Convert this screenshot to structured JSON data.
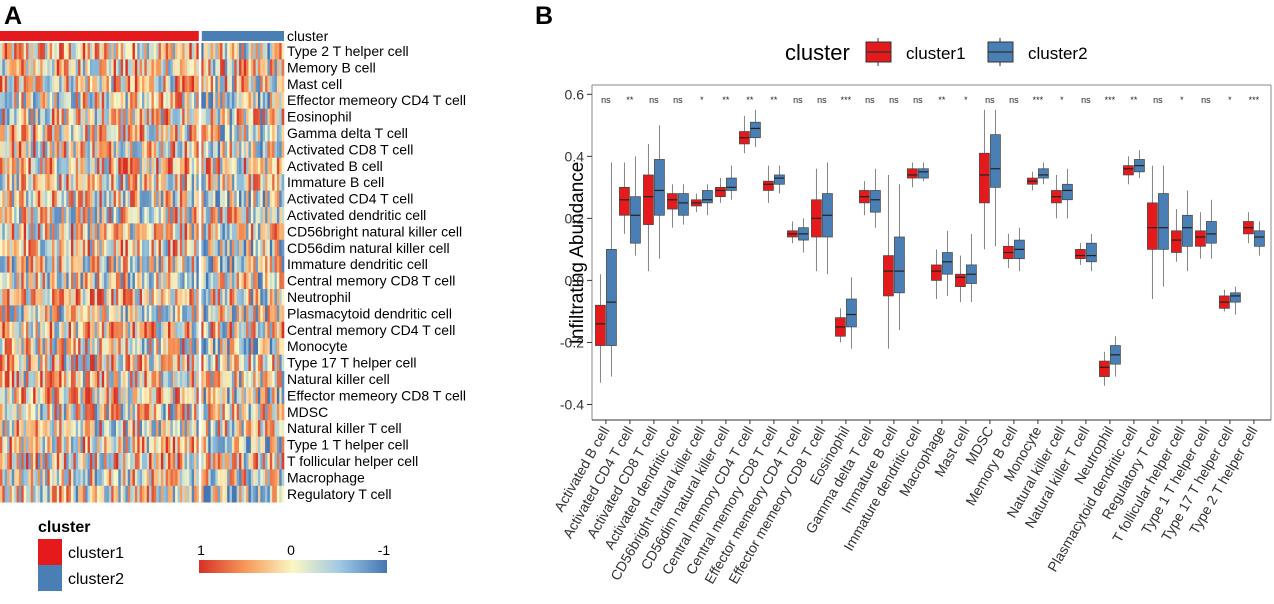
{
  "panel_a": {
    "label": "A",
    "cluster_label": "cluster",
    "rows": [
      "Type 2 T helper cell",
      "Memory B cell",
      "Mast cell",
      "Effector memeory CD4 T cell",
      "Eosinophil",
      "Gamma delta T cell",
      "Activated CD8 T cell",
      "Activated B cell",
      "Immature  B cell",
      "Activated CD4 T cell",
      "Activated dendritic cell",
      "CD56bright natural killer cell",
      "CD56dim natural killer cell",
      "Immature dendritic cell",
      "Central memory CD8 T cell",
      "Neutrophil",
      "Plasmacytoid dendritic cell",
      "Central memory CD4 T cell",
      "Monocyte",
      "Type 17 T helper cell",
      "Natural killer cell",
      "Effector memeory CD8 T cell",
      "MDSC",
      "Natural killer T cell",
      "Type 1 T helper cell",
      "T follicular helper cell",
      "Macrophage",
      "Regulatory T cell"
    ],
    "legend_title": "cluster",
    "legend_items": [
      "cluster1",
      "cluster2"
    ],
    "scale_labels": [
      "1",
      "0",
      "-1"
    ]
  },
  "colors": {
    "cluster1": "#e41a1c",
    "cluster2": "#4a7fb5",
    "heat_high": "#d73027",
    "heat_mid": "#fbf7c4",
    "heat_low": "#4575b4"
  },
  "chart_data": {
    "type": "box",
    "panel_label": "B",
    "legend_title": "cluster",
    "series_names": [
      "cluster1",
      "cluster2"
    ],
    "ylabel": "Infiltrating Abundance",
    "ylim": [
      -0.45,
      0.63
    ],
    "yticks": [
      "0.6",
      "0.4",
      "0.2",
      "0.0",
      "-0.2",
      "-0.4"
    ],
    "categories": [
      "Activated B cell",
      "Activated CD4 T cell",
      "Activated CD8 T cell",
      "Activated dendritic cell",
      "CD56bright natural killer cell",
      "CD56dim natural killer cell",
      "Central memory CD4 T cell",
      "Central memory CD8 T cell",
      "Effector memeory CD4 T cell",
      "Effector memeory CD8 T cell",
      "Eosinophil",
      "Gamma delta T cell",
      "Immature  B cell",
      "Immature dendritic cell",
      "Macrophage",
      "Mast cell",
      "MDSC",
      "Memory B cell",
      "Monocyte",
      "Natural killer cell",
      "Natural killer T cell",
      "Neutrophil",
      "Plasmacytoid dendritic cell",
      "Regulatory T cell",
      "T follicular helper cell",
      "Type 1 T helper cell",
      "Type 17 T helper cell",
      "Type 2 T helper cell"
    ],
    "significance": [
      "ns",
      "**",
      "ns",
      "ns",
      "*",
      "**",
      "**",
      "**",
      "ns",
      "ns",
      "***",
      "ns",
      "ns",
      "ns",
      "**",
      "*",
      "ns",
      "ns",
      "***",
      "*",
      "ns",
      "***",
      "**",
      "ns",
      "*",
      "ns",
      "*",
      "***"
    ],
    "cluster1": [
      [
        -0.33,
        -0.21,
        -0.14,
        -0.08,
        0.02
      ],
      [
        0.15,
        0.21,
        0.26,
        0.3,
        0.38
      ],
      [
        0.03,
        0.18,
        0.27,
        0.34,
        0.44
      ],
      [
        0.17,
        0.23,
        0.26,
        0.28,
        0.31
      ],
      [
        0.22,
        0.24,
        0.25,
        0.26,
        0.28
      ],
      [
        0.25,
        0.27,
        0.29,
        0.3,
        0.33
      ],
      [
        0.41,
        0.44,
        0.46,
        0.48,
        0.53
      ],
      [
        0.25,
        0.29,
        0.31,
        0.32,
        0.37
      ],
      [
        0.12,
        0.14,
        0.15,
        0.16,
        0.19
      ],
      [
        0.03,
        0.14,
        0.2,
        0.26,
        0.36
      ],
      [
        -0.2,
        -0.18,
        -0.15,
        -0.12,
        -0.09
      ],
      [
        0.21,
        0.25,
        0.27,
        0.29,
        0.32
      ],
      [
        -0.22,
        -0.05,
        0.03,
        0.08,
        0.34
      ],
      [
        0.3,
        0.33,
        0.34,
        0.36,
        0.38
      ],
      [
        -0.06,
        0.0,
        0.03,
        0.05,
        0.1
      ],
      [
        -0.07,
        -0.02,
        0.01,
        0.02,
        0.08
      ],
      [
        0.1,
        0.25,
        0.34,
        0.41,
        0.55
      ],
      [
        0.04,
        0.07,
        0.09,
        0.11,
        0.15
      ],
      [
        0.29,
        0.31,
        0.32,
        0.33,
        0.35
      ],
      [
        0.2,
        0.25,
        0.27,
        0.29,
        0.34
      ],
      [
        0.05,
        0.07,
        0.08,
        0.1,
        0.12
      ],
      [
        -0.34,
        -0.31,
        -0.28,
        -0.26,
        -0.23
      ],
      [
        0.31,
        0.34,
        0.36,
        0.37,
        0.4
      ],
      [
        -0.06,
        0.1,
        0.17,
        0.25,
        0.37
      ],
      [
        0.06,
        0.09,
        0.13,
        0.16,
        0.23
      ],
      [
        0.07,
        0.11,
        0.14,
        0.16,
        0.22
      ],
      [
        -0.1,
        -0.09,
        -0.07,
        -0.05,
        -0.03
      ],
      [
        0.12,
        0.15,
        0.17,
        0.19,
        0.22
      ]
    ],
    "cluster2": [
      [
        -0.31,
        -0.21,
        -0.07,
        0.1,
        0.38
      ],
      [
        0.08,
        0.12,
        0.21,
        0.27,
        0.4
      ],
      [
        0.07,
        0.21,
        0.29,
        0.39,
        0.5
      ],
      [
        0.18,
        0.21,
        0.25,
        0.28,
        0.31
      ],
      [
        0.21,
        0.25,
        0.26,
        0.29,
        0.31
      ],
      [
        0.26,
        0.29,
        0.3,
        0.33,
        0.37
      ],
      [
        0.43,
        0.46,
        0.49,
        0.51,
        0.55
      ],
      [
        0.28,
        0.31,
        0.33,
        0.34,
        0.37
      ],
      [
        0.09,
        0.13,
        0.15,
        0.17,
        0.2
      ],
      [
        0.02,
        0.14,
        0.21,
        0.28,
        0.38
      ],
      [
        -0.22,
        -0.15,
        -0.11,
        -0.06,
        0.01
      ],
      [
        0.17,
        0.22,
        0.26,
        0.29,
        0.36
      ],
      [
        -0.16,
        -0.04,
        0.03,
        0.14,
        0.31
      ],
      [
        0.32,
        0.33,
        0.35,
        0.36,
        0.38
      ],
      [
        -0.05,
        0.02,
        0.06,
        0.09,
        0.16
      ],
      [
        -0.07,
        -0.01,
        0.02,
        0.05,
        0.15
      ],
      [
        0.11,
        0.3,
        0.36,
        0.47,
        0.55
      ],
      [
        0.03,
        0.07,
        0.1,
        0.13,
        0.17
      ],
      [
        0.31,
        0.33,
        0.34,
        0.36,
        0.38
      ],
      [
        0.2,
        0.26,
        0.29,
        0.31,
        0.36
      ],
      [
        0.03,
        0.06,
        0.08,
        0.12,
        0.15
      ],
      [
        -0.31,
        -0.27,
        -0.24,
        -0.21,
        -0.18
      ],
      [
        0.33,
        0.35,
        0.37,
        0.39,
        0.42
      ],
      [
        -0.02,
        0.1,
        0.17,
        0.28,
        0.37
      ],
      [
        0.03,
        0.11,
        0.17,
        0.21,
        0.29
      ],
      [
        0.07,
        0.12,
        0.15,
        0.19,
        0.26
      ],
      [
        -0.11,
        -0.07,
        -0.05,
        -0.04,
        -0.02
      ],
      [
        0.08,
        0.11,
        0.14,
        0.16,
        0.19
      ]
    ]
  }
}
